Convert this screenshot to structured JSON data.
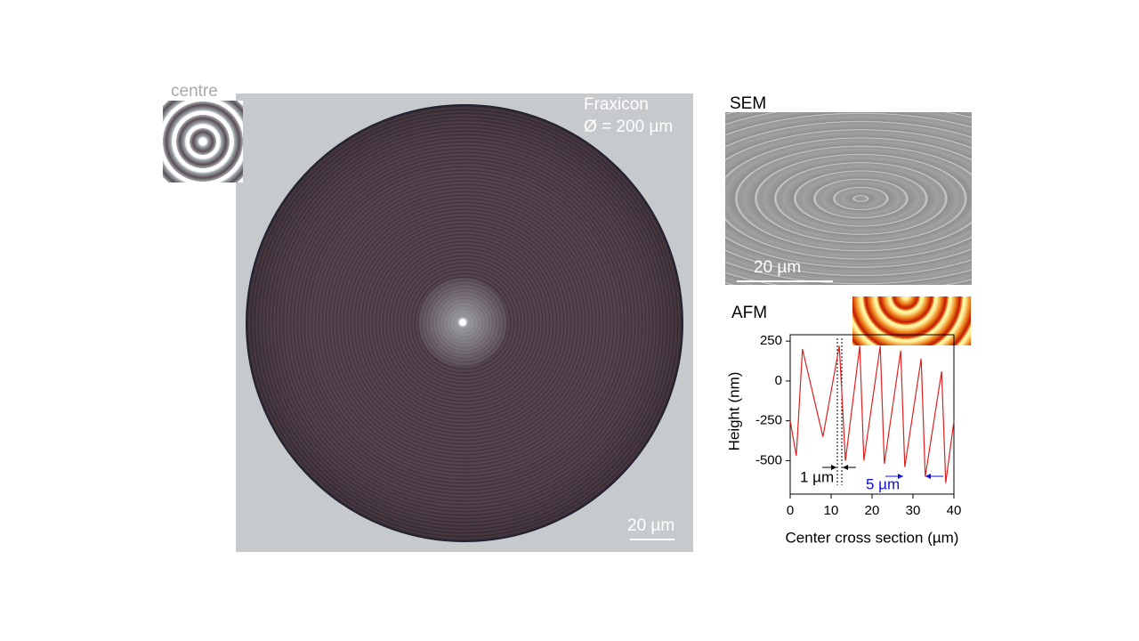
{
  "labels": {
    "centre": "centre",
    "fraxicon": "Fraxicon",
    "diameter": "Ø = 200 µm",
    "main_scale": "20 µm",
    "sem": "SEM",
    "sem_scale": "20 µm",
    "afm": "AFM"
  },
  "chart_data": {
    "type": "line",
    "xlabel": "Center cross section (µm)",
    "ylabel": "Height (nm)",
    "x": [
      0,
      1.5,
      3,
      8,
      12,
      13.5,
      17,
      18,
      22,
      23,
      27,
      28,
      32,
      33,
      37,
      38,
      40
    ],
    "values": [
      -250,
      -470,
      200,
      -350,
      220,
      -500,
      220,
      -500,
      220,
      -520,
      190,
      -540,
      140,
      -600,
      60,
      -640,
      -250
    ],
    "color": "#e02020",
    "xlim": [
      0,
      40
    ],
    "xticks": [
      0,
      10,
      20,
      30,
      40
    ],
    "ylim": [
      -710,
      290
    ],
    "yticks": [
      -500,
      -250,
      0,
      250
    ],
    "annotations": [
      "1 µm",
      "5 µm"
    ]
  }
}
